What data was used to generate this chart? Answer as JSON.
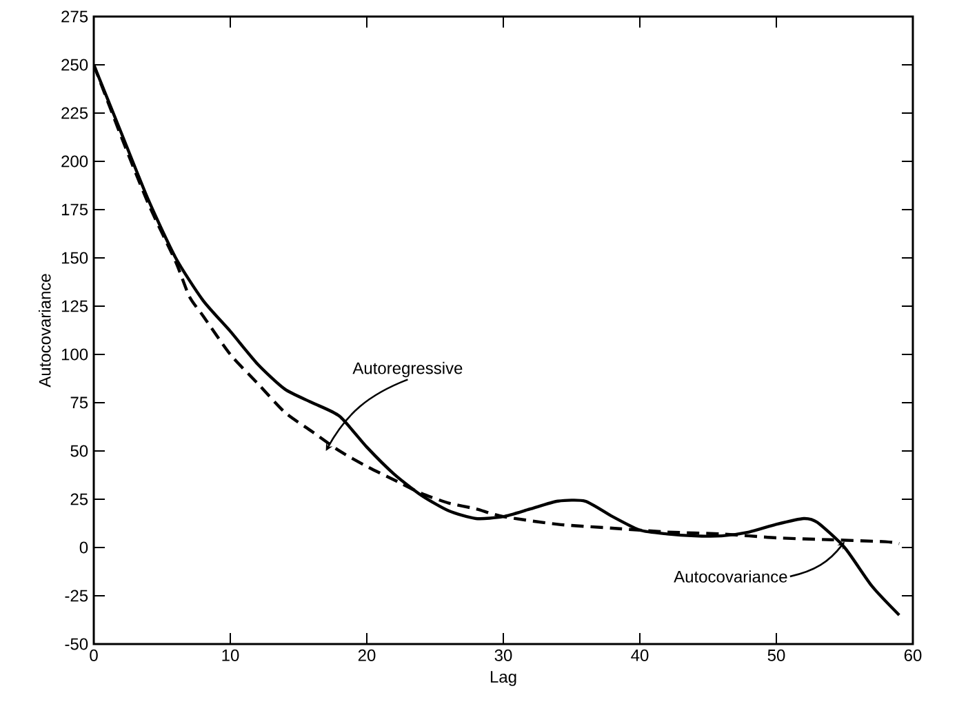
{
  "chart_data": {
    "type": "line",
    "xlabel": "Lag",
    "ylabel": "Autocovariance",
    "xlim": [
      0,
      60
    ],
    "ylim": [
      -50,
      275
    ],
    "xticks": [
      0,
      10,
      20,
      30,
      40,
      50,
      60
    ],
    "yticks": [
      -50,
      -25,
      0,
      25,
      50,
      75,
      100,
      125,
      150,
      175,
      200,
      225,
      250,
      275
    ],
    "grid": false,
    "series": [
      {
        "color": "#000000",
        "line_style": "solid",
        "x": [
          0,
          2,
          4,
          6,
          8,
          10,
          12,
          14,
          16,
          18,
          20,
          22,
          24,
          26,
          28,
          30,
          32,
          34,
          36,
          38,
          40,
          42,
          44,
          46,
          48,
          50,
          52,
          53,
          55,
          57,
          59
        ],
        "values": [
          250,
          215,
          180,
          150,
          128,
          112,
          95,
          82,
          75,
          68,
          52,
          38,
          27,
          19,
          15,
          16,
          20,
          24,
          24,
          16,
          9,
          7,
          6,
          6,
          8,
          12,
          15,
          13,
          0,
          -20,
          -35
        ]
      },
      {
        "color": "#000000",
        "line_style": "dashed",
        "x": [
          0,
          2,
          4,
          6,
          7,
          8,
          10,
          12,
          14,
          16,
          18,
          20,
          22,
          24,
          26,
          28,
          30,
          34,
          38,
          42,
          46,
          50,
          54,
          58,
          59
        ],
        "values": [
          250,
          213,
          178,
          148,
          130,
          120,
          100,
          85,
          70,
          60,
          50,
          42,
          35,
          28,
          23,
          20,
          16,
          12,
          10,
          8,
          7,
          5,
          4,
          3,
          2
        ]
      }
    ],
    "annotations": [
      {
        "text": "Autoregressive",
        "x": 17,
        "y": 50
      },
      {
        "text": "Autocovariance",
        "x": 55,
        "y": 3
      }
    ]
  }
}
